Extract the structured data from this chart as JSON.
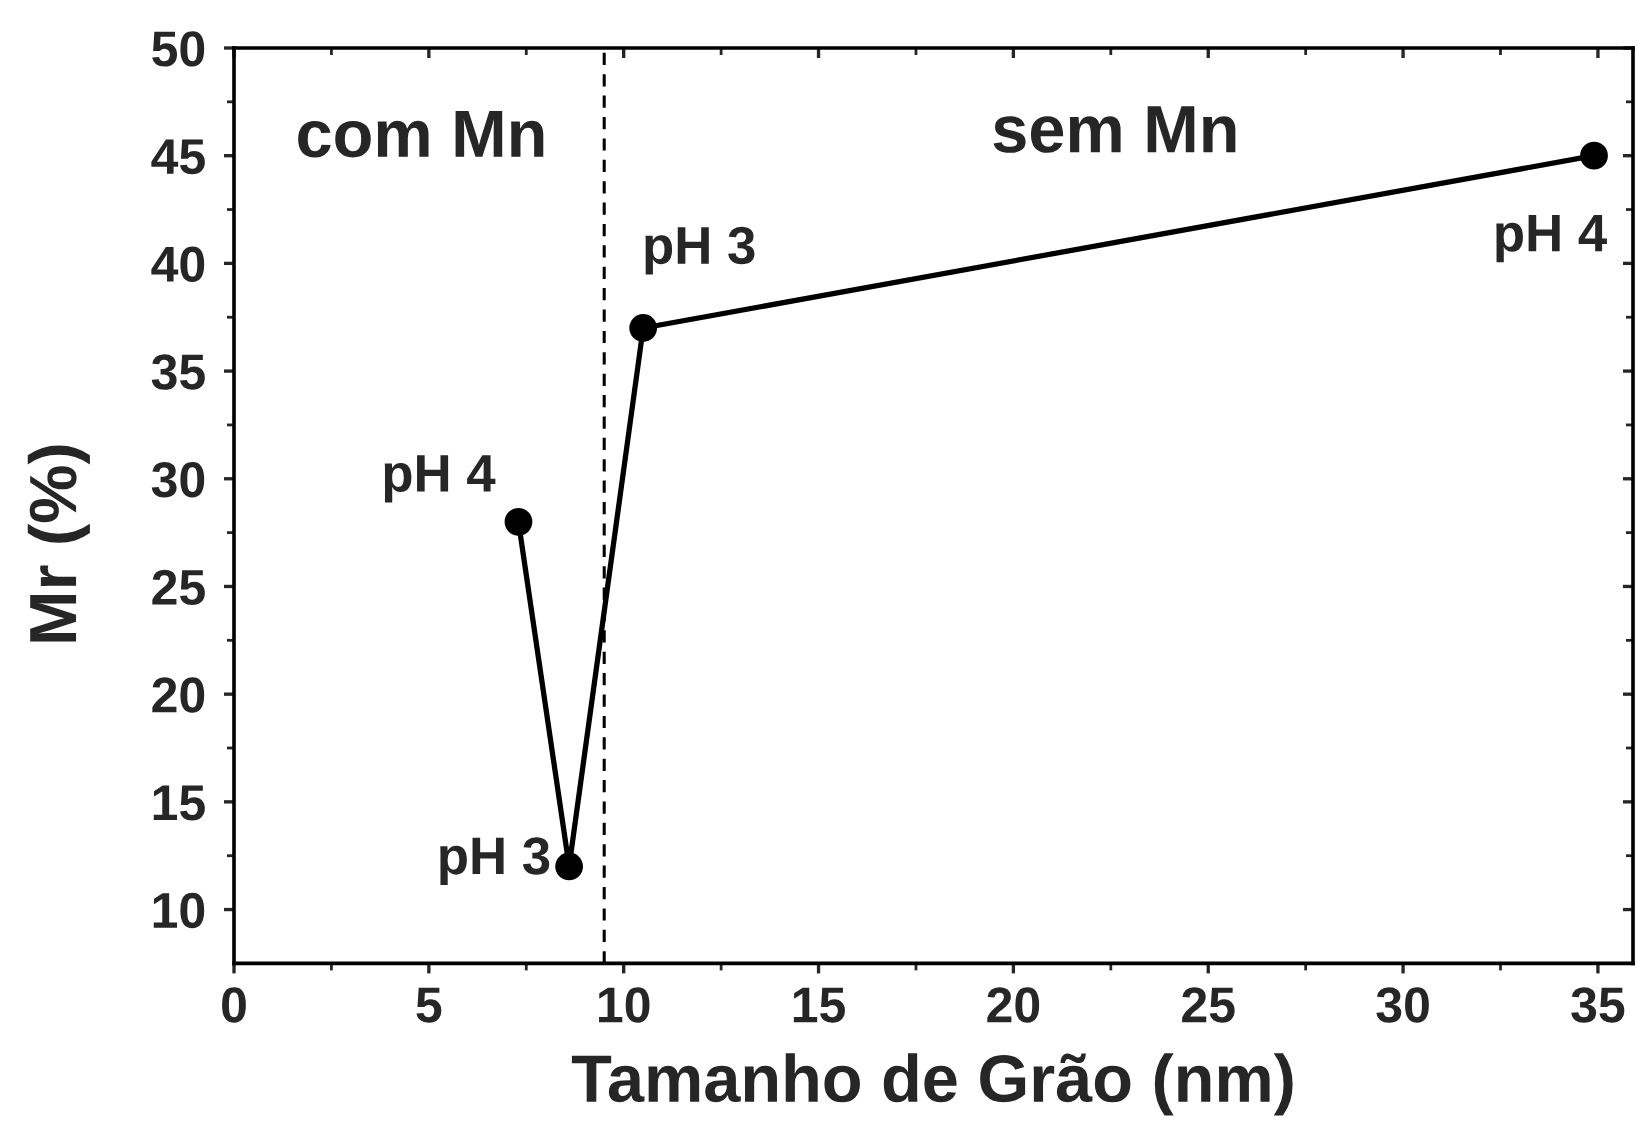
{
  "chart_data": {
    "type": "line",
    "xlabel": "Tamanho de Grão (nm)",
    "ylabel": "Mr (%)",
    "x": [
      7.3,
      8.6,
      10.5,
      34.9
    ],
    "series": [
      {
        "color": "#000000",
        "values": [
          28,
          12,
          37,
          45
        ]
      }
    ],
    "xlim": [
      0,
      35.9
    ],
    "ylim": [
      7.5,
      50
    ],
    "xticks": [
      0,
      5,
      10,
      15,
      20,
      25,
      30,
      35
    ],
    "yticks": [
      10,
      15,
      20,
      25,
      30,
      35,
      40,
      45,
      50
    ],
    "marker": "circle",
    "line_style": "solid",
    "grid": false,
    "legend": false,
    "ref_lines": [
      {
        "axis": "x",
        "value": 9.5,
        "line_style": "dashed",
        "color": "#000000"
      }
    ],
    "annotations": [
      "com Mn",
      "sem Mn",
      {
        "text": "pH 4",
        "x": 7.3,
        "y": 28
      },
      {
        "text": "pH 3",
        "x": 8.6,
        "y": 12
      },
      {
        "text": "pH 3",
        "x": 10.5,
        "y": 37
      },
      {
        "text": "pH 4",
        "x": 34.9,
        "y": 45
      }
    ]
  }
}
